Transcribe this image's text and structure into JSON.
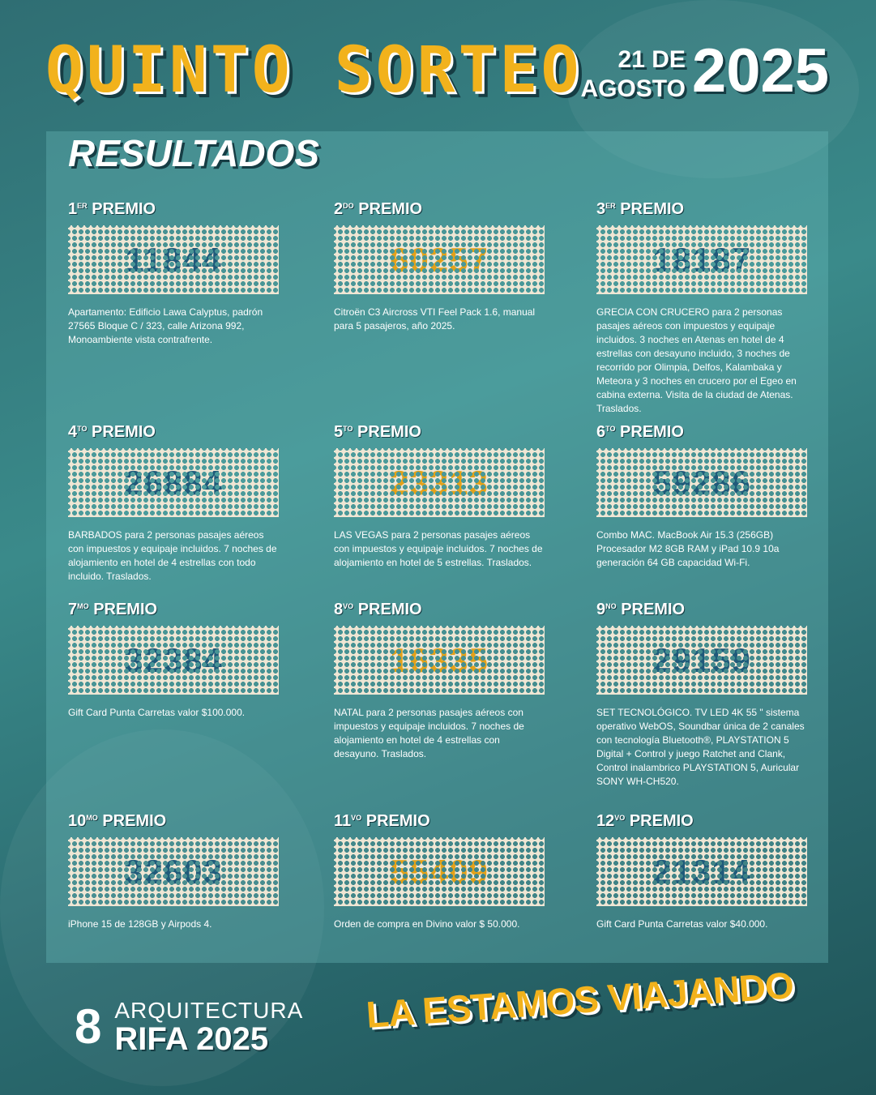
{
  "header": {
    "title": "QUINTO SORTEO",
    "date_day": "21 DE",
    "date_month": "AGOSTO",
    "date_year": "2025"
  },
  "section_title": "RESULTADOS",
  "colors": {
    "accent_yellow": "#f2b21c",
    "number_blue": "#1f5a7a",
    "number_orange": "#e3a21a",
    "ticket": "#efe6d4"
  },
  "prizes": [
    {
      "n": "1",
      "sup": "ER",
      "label": "PREMIO",
      "number": "11844",
      "desc": "Apartamento: Edificio Lawa Calyptus, padrón 27565 Bloque C / 323, calle Arizona 992, Monoambiente vista contrafrente."
    },
    {
      "n": "2",
      "sup": "DO",
      "label": "PREMIO",
      "number": "60257",
      "desc": "Citroën C3 Aircross VTI Feel Pack 1.6, manual para 5 pasajeros, año 2025."
    },
    {
      "n": "3",
      "sup": "ER",
      "label": "PREMIO",
      "number": "18187",
      "desc": "GRECIA CON CRUCERO para 2 personas pasajes aéreos con impuestos y equipaje incluidos. 3 noches en Atenas en hotel de 4 estrellas con desayuno incluido, 3 noches de recorrido por Olimpia, Delfos, Kalambaka y Meteora y 3 noches en crucero por el Egeo en cabina externa. Visita de la ciudad de Atenas. Traslados."
    },
    {
      "n": "4",
      "sup": "TO",
      "label": "PREMIO",
      "number": "26884",
      "desc": "BARBADOS para 2 personas pasajes aéreos con impuestos y equipaje incluidos. 7 noches de alojamiento en hotel de 4 estrellas con todo incluido. Traslados."
    },
    {
      "n": "5",
      "sup": "TO",
      "label": "PREMIO",
      "number": "23313",
      "desc": "LAS VEGAS para 2 personas pasajes aéreos con impuestos y equipaje incluidos. 7 noches de alojamiento en hotel de 5 estrellas. Traslados."
    },
    {
      "n": "6",
      "sup": "TO",
      "label": "PREMIO",
      "number": "59286",
      "desc": "Combo MAC. MacBook Air 15.3 (256GB) Procesador M2 8GB RAM y iPad 10.9 10a generación 64 GB capacidad Wi-Fi."
    },
    {
      "n": "7",
      "sup": "MO",
      "label": "PREMIO",
      "number": "32384",
      "desc": "Gift Card Punta Carretas valor $100.000."
    },
    {
      "n": "8",
      "sup": "VO",
      "label": "PREMIO",
      "number": "16335",
      "desc": "NATAL para 2 personas pasajes aéreos con impuestos y equipaje incluidos. 7 noches de alojamiento en hotel de 4 estrellas con desayuno. Traslados."
    },
    {
      "n": "9",
      "sup": "NO",
      "label": "PREMIO",
      "number": "29159",
      "desc": "SET TECNOLÓGICO. TV LED 4K 55 \" sistema operativo WebOS, Soundbar única de 2 canales con tecnología Bluetooth®, PLAYSTATION 5 Digital + Control y juego Ratchet and Clank, Control inalambrico PLAYSTATION 5, Auricular SONY WH-CH520."
    },
    {
      "n": "10",
      "sup": "MO",
      "label": "PREMIO",
      "number": "32603",
      "desc": "iPhone 15 de 128GB y Airpods 4."
    },
    {
      "n": "11",
      "sup": "VO",
      "label": "PREMIO",
      "number": "55409",
      "desc": "Orden de compra en Divino valor $ 50.000."
    },
    {
      "n": "12",
      "sup": "VO",
      "label": "PREMIO",
      "number": "21314",
      "desc": "Gift Card Punta Carretas valor $40.000."
    }
  ],
  "footer": {
    "logo_mark": "8",
    "logo_line1": "ARQUITECTURA",
    "logo_line2": "RIFA 2025",
    "slogan": "LA ESTAMOS VIAJANDO"
  }
}
